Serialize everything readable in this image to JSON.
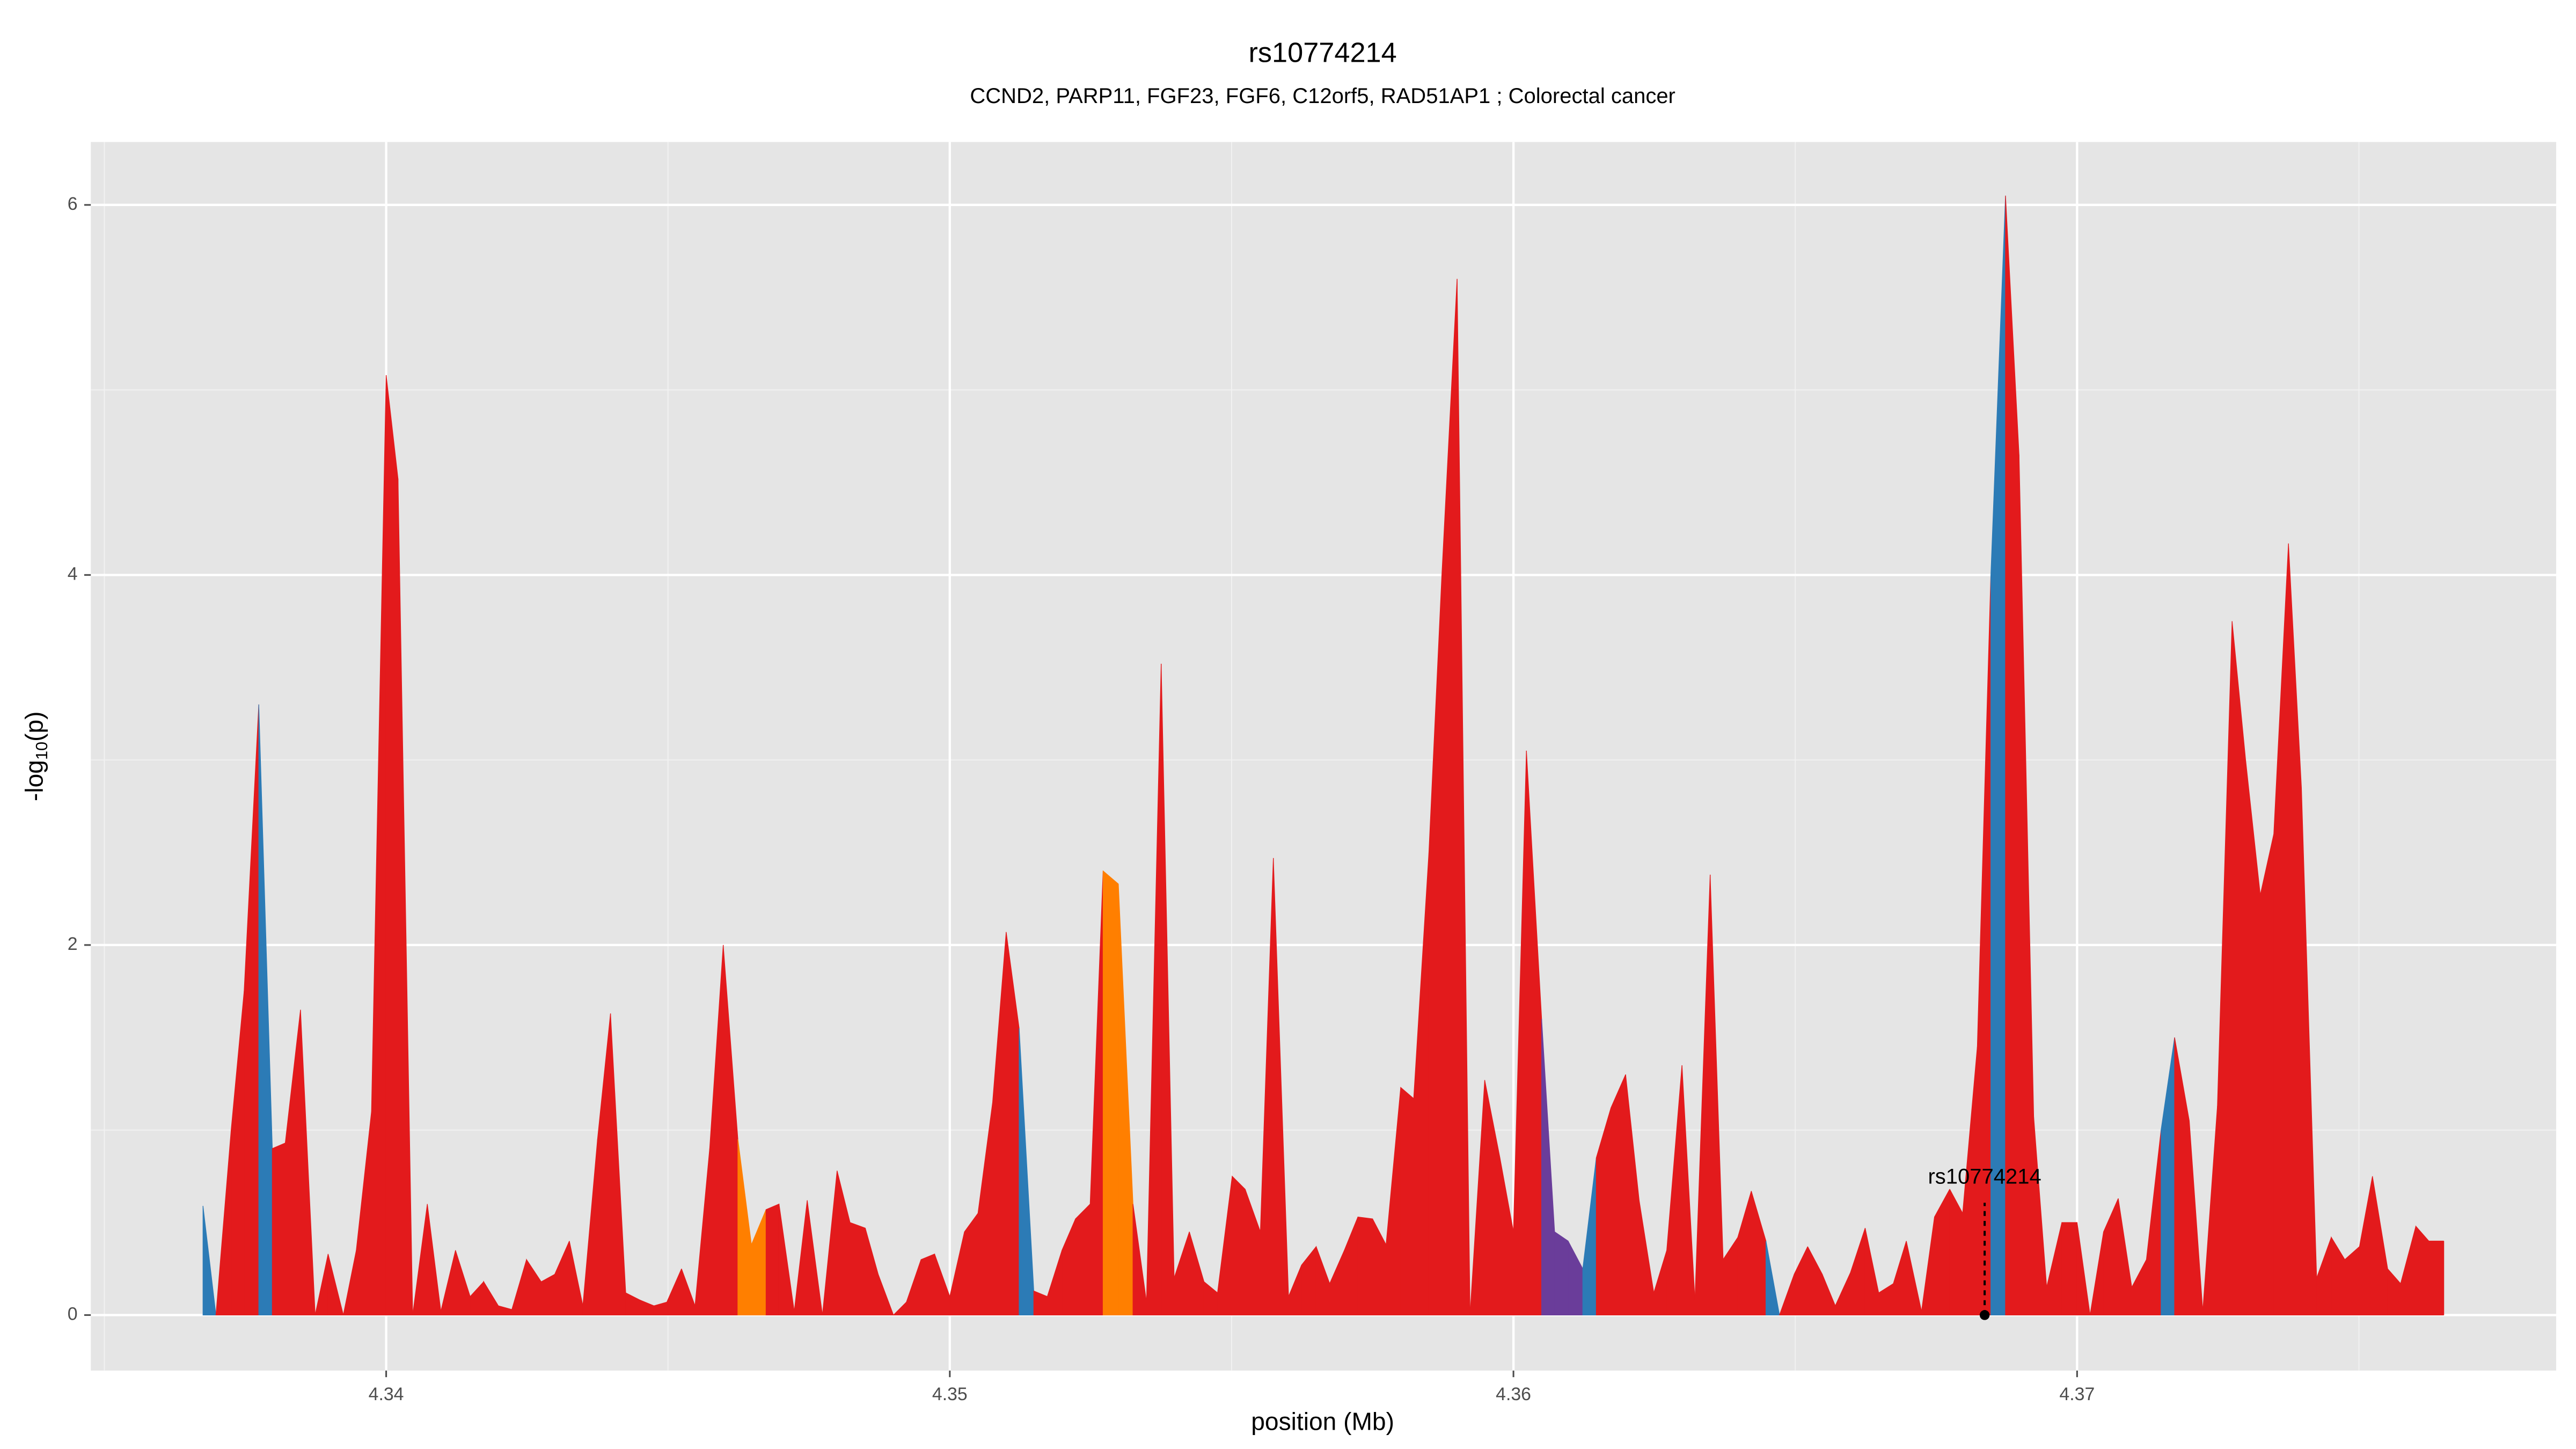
{
  "chart_data": {
    "type": "area",
    "title": "rs10774214",
    "subtitle": "CCND2, PARP11, FGF23, FGF6, C12orf5, RAD51AP1 ; Colorectal cancer",
    "xlabel": "position (Mb)",
    "ylabel": {
      "prefix": "-log",
      "subscript": "10",
      "suffix": "(p)"
    },
    "xlim": [
      4.33476,
      4.3785
    ],
    "ylim": [
      -0.3,
      6.34
    ],
    "xticks": [
      4.34,
      4.35,
      4.36,
      4.37
    ],
    "yticks": [
      0,
      2,
      4,
      6
    ],
    "x_minor_grid": [
      4.335,
      4.345,
      4.355,
      4.365,
      4.375
    ],
    "y_minor_grid": [
      1,
      3,
      5
    ],
    "grid": true,
    "x": [
      4.33675,
      4.33698,
      4.33725,
      4.33748,
      4.33774,
      4.33798,
      4.33821,
      4.33848,
      4.33874,
      4.33897,
      4.33924,
      4.33947,
      4.33974,
      4.34,
      4.34021,
      4.34047,
      4.34073,
      4.34097,
      4.34123,
      4.34149,
      4.34173,
      4.34199,
      4.34223,
      4.34249,
      4.34275,
      4.34299,
      4.34325,
      4.34349,
      4.34375,
      4.34398,
      4.34425,
      4.34451,
      4.34475,
      4.34498,
      4.34524,
      4.34548,
      4.34574,
      4.34598,
      4.34624,
      4.34648,
      4.34674,
      4.34697,
      4.34724,
      4.34747,
      4.34774,
      4.348,
      4.34823,
      4.3485,
      4.34873,
      4.349,
      4.34923,
      4.34949,
      4.34973,
      4.35,
      4.35026,
      4.3505,
      4.35076,
      4.351,
      4.35123,
      4.35149,
      4.35173,
      4.35199,
      4.35223,
      4.35249,
      4.35272,
      4.35299,
      4.35325,
      4.35349,
      4.35375,
      4.35398,
      4.35425,
      4.35451,
      4.35475,
      4.35501,
      4.35524,
      4.35551,
      4.35574,
      4.35601,
      4.35624,
      4.3565,
      4.35674,
      4.357,
      4.35724,
      4.3575,
      4.35774,
      4.358,
      4.35823,
      4.3585,
      4.35873,
      4.359,
      4.35923,
      4.35949,
      4.35976,
      4.36,
      4.36023,
      4.3605,
      4.36073,
      4.36097,
      4.36123,
      4.36147,
      4.36173,
      4.36199,
      4.36223,
      4.36249,
      4.36272,
      4.36299,
      4.36322,
      4.36349,
      4.36372,
      4.36398,
      4.36422,
      4.36448,
      4.36472,
      4.36498,
      4.36522,
      4.36548,
      4.36571,
      4.36598,
      4.36624,
      4.36648,
      4.36674,
      4.36697,
      4.36724,
      4.36747,
      4.36774,
      4.36797,
      4.36823,
      4.36847,
      4.36873,
      4.36897,
      4.36923,
      4.36946,
      4.36973,
      4.37,
      4.37023,
      4.37047,
      4.37073,
      4.37097,
      4.37123,
      4.37149,
      4.37173,
      4.37199,
      4.37223,
      4.37249,
      4.37275,
      4.37299,
      4.37325,
      4.37349,
      4.37375,
      4.37398,
      4.37425,
      4.37451,
      4.37475,
      4.37501,
      4.37524,
      4.37551,
      4.37574,
      4.37601,
      4.37624,
      4.3765
    ],
    "values": [
      0.59,
      0,
      1.0,
      1.75,
      3.3,
      0.9,
      0.93,
      1.65,
      0,
      0.33,
      0,
      0.35,
      1.1,
      5.08,
      4.52,
      0,
      0.6,
      0.02,
      0.35,
      0.1,
      0.18,
      0.05,
      0.03,
      0.3,
      0.18,
      0.22,
      0.4,
      0.05,
      0.95,
      1.63,
      0.12,
      0.08,
      0.05,
      0.07,
      0.25,
      0.05,
      0.9,
      2.0,
      0.95,
      0.38,
      0.57,
      0.6,
      0.02,
      0.62,
      0,
      0.78,
      0.5,
      0.47,
      0.22,
      0,
      0.07,
      0.3,
      0.33,
      0.1,
      0.45,
      0.55,
      1.15,
      2.07,
      1.55,
      0.13,
      0.1,
      0.35,
      0.52,
      0.6,
      2.4,
      2.33,
      0.6,
      0.07,
      3.52,
      0.2,
      0.45,
      0.18,
      0.12,
      0.75,
      0.68,
      0.45,
      2.47,
      0.1,
      0.27,
      0.37,
      0.17,
      0.35,
      0.53,
      0.52,
      0.38,
      1.23,
      1.17,
      2.5,
      4.0,
      5.6,
      0,
      1.27,
      0.85,
      0.45,
      3.05,
      1.6,
      0.45,
      0.4,
      0.25,
      0.85,
      1.12,
      1.3,
      0.62,
      0.12,
      0.35,
      1.35,
      0.08,
      2.38,
      0.3,
      0.42,
      0.67,
      0.4,
      0,
      0.22,
      0.37,
      0.22,
      0.05,
      0.23,
      0.47,
      0.12,
      0.17,
      0.4,
      0.02,
      0.53,
      0.68,
      0.55,
      1.45,
      4.0,
      6.05,
      4.65,
      1.07,
      0.15,
      0.5,
      0.5,
      0,
      0.45,
      0.63,
      0.15,
      0.3,
      1.0,
      1.5,
      1.05,
      0.02,
      1.13,
      3.75,
      3.0,
      2.27,
      2.6,
      4.17,
      2.85,
      0.2,
      0.42,
      0.3,
      0.37,
      0.75,
      0.25,
      0.17,
      0.48,
      0.4,
      0.4
    ],
    "colors": [
      "#2c7bb6",
      "#e31a1c",
      "#e31a1c",
      "#e31a1c",
      "#2c7bb6",
      "#e31a1c",
      "#e31a1c",
      "#e31a1c",
      "#e31a1c",
      "#e31a1c",
      "#e31a1c",
      "#e31a1c",
      "#e31a1c",
      "#e31a1c",
      "#e31a1c",
      "#e31a1c",
      "#e31a1c",
      "#e31a1c",
      "#e31a1c",
      "#e31a1c",
      "#e31a1c",
      "#e31a1c",
      "#e31a1c",
      "#e31a1c",
      "#e31a1c",
      "#e31a1c",
      "#e31a1c",
      "#e31a1c",
      "#e31a1c",
      "#e31a1c",
      "#e31a1c",
      "#e31a1c",
      "#e31a1c",
      "#e31a1c",
      "#e31a1c",
      "#e31a1c",
      "#e31a1c",
      "#e31a1c",
      "#ff7f00",
      "#ff7f00",
      "#e31a1c",
      "#e31a1c",
      "#e31a1c",
      "#e31a1c",
      "#e31a1c",
      "#e31a1c",
      "#e31a1c",
      "#e31a1c",
      "#e31a1c",
      "#e31a1c",
      "#e31a1c",
      "#e31a1c",
      "#e31a1c",
      "#e31a1c",
      "#e31a1c",
      "#e31a1c",
      "#e31a1c",
      "#e31a1c",
      "#2c7bb6",
      "#e31a1c",
      "#e31a1c",
      "#e31a1c",
      "#e31a1c",
      "#e31a1c",
      "#ff7f00",
      "#ff7f00",
      "#e31a1c",
      "#e31a1c",
      "#e31a1c",
      "#e31a1c",
      "#e31a1c",
      "#e31a1c",
      "#e31a1c",
      "#e31a1c",
      "#e31a1c",
      "#e31a1c",
      "#e31a1c",
      "#e31a1c",
      "#e31a1c",
      "#e31a1c",
      "#e31a1c",
      "#e31a1c",
      "#e31a1c",
      "#e31a1c",
      "#e31a1c",
      "#e31a1c",
      "#e31a1c",
      "#e31a1c",
      "#e31a1c",
      "#e31a1c",
      "#e31a1c",
      "#e31a1c",
      "#e31a1c",
      "#e31a1c",
      "#e31a1c",
      "#6a3d9a",
      "#6a3d9a",
      "#6a3d9a",
      "#2c7bb6",
      "#e31a1c",
      "#e31a1c",
      "#e31a1c",
      "#e31a1c",
      "#e31a1c",
      "#e31a1c",
      "#e31a1c",
      "#e31a1c",
      "#e31a1c",
      "#e31a1c",
      "#e31a1c",
      "#e31a1c",
      "#2c7bb6",
      "#e31a1c",
      "#e31a1c",
      "#e31a1c",
      "#e31a1c",
      "#e31a1c",
      "#e31a1c",
      "#e31a1c",
      "#e31a1c",
      "#e31a1c",
      "#e31a1c",
      "#e31a1c",
      "#e31a1c",
      "#e31a1c",
      "#e31a1c",
      "#e31a1c",
      "#2c7bb6",
      "#e31a1c",
      "#e31a1c",
      "#e31a1c",
      "#e31a1c",
      "#e31a1c",
      "#e31a1c",
      "#e31a1c",
      "#e31a1c",
      "#e31a1c",
      "#e31a1c",
      "#e31a1c",
      "#2c7bb6",
      "#e31a1c",
      "#e31a1c",
      "#e31a1c",
      "#e31a1c",
      "#e31a1c",
      "#e31a1c",
      "#e31a1c",
      "#e31a1c",
      "#e31a1c",
      "#e31a1c",
      "#e31a1c",
      "#e31a1c",
      "#e31a1c",
      "#e31a1c",
      "#e31a1c",
      "#e31a1c",
      "#e31a1c",
      "#e31a1c",
      "#e31a1c",
      "#e31a1c"
    ],
    "annotation": {
      "label": "rs10774214",
      "x": 4.36836,
      "y": 0
    }
  }
}
